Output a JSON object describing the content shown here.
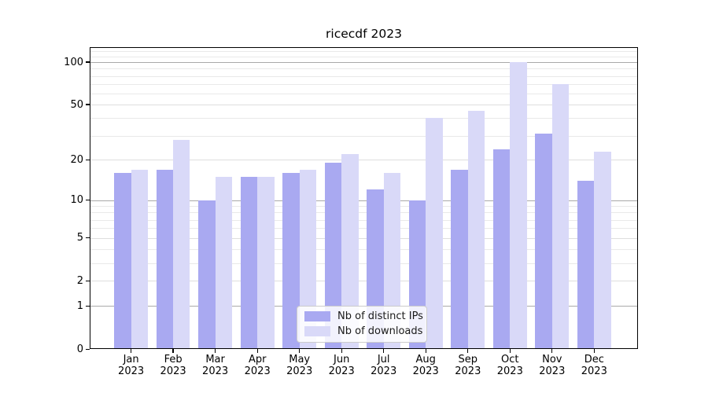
{
  "title": "ricecdf 2023",
  "chart_data": {
    "type": "bar",
    "title": "ricecdf 2023",
    "categories": [
      "Jan 2023",
      "Feb 2023",
      "Mar 2023",
      "Apr 2023",
      "May 2023",
      "Jun 2023",
      "Jul 2023",
      "Aug 2023",
      "Sep 2023",
      "Oct 2023",
      "Nov 2023",
      "Dec 2023"
    ],
    "month_labels": [
      "Jan",
      "Feb",
      "Mar",
      "Apr",
      "May",
      "Jun",
      "Jul",
      "Aug",
      "Sep",
      "Oct",
      "Nov",
      "Dec"
    ],
    "year_label": "2023",
    "series": [
      {
        "name": "Nb of distinct IPs",
        "color": "#a9a9f1",
        "values": [
          16,
          17,
          10,
          15,
          16,
          19,
          12,
          10,
          17,
          24,
          31,
          14
        ]
      },
      {
        "name": "Nb of downloads",
        "color": "#d9d9f8",
        "values": [
          17,
          28,
          15,
          15,
          17,
          22,
          16,
          40,
          45,
          100,
          70,
          23
        ]
      }
    ],
    "y_axis": {
      "scale": "log10(value+1)",
      "tick_labels": [
        0,
        1,
        2,
        5,
        10,
        20,
        50,
        100
      ],
      "major_gridlines": [
        1,
        10,
        100
      ],
      "labeled_gridlines": [
        2,
        5,
        20,
        50
      ],
      "minor_gridlines": [
        3,
        4,
        6,
        7,
        8,
        9,
        30,
        40,
        60,
        70,
        80,
        90,
        110,
        120
      ],
      "ylim": [
        0,
        127.4
      ]
    },
    "xlabel": "",
    "ylabel": "",
    "grid": true,
    "legend": {
      "position": "lower center",
      "entries": [
        "Nb of distinct IPs",
        "Nb of downloads"
      ]
    },
    "background": "#ffffff"
  }
}
